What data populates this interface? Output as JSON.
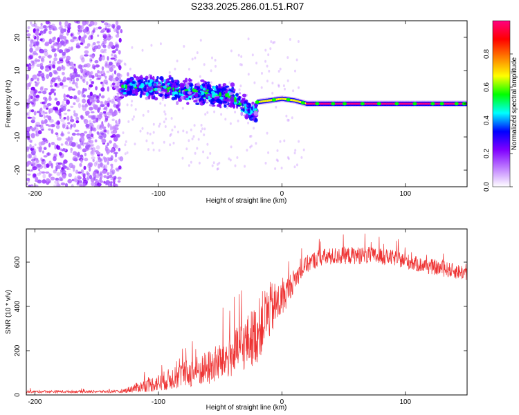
{
  "title": "S233.2025.286.01.51.R07",
  "chart_data": [
    {
      "type": "heatmap",
      "name": "spectrogram",
      "xlabel": "Height of straight line (km)",
      "ylabel": "Frequency (Hz)",
      "xlim": [
        -207,
        150
      ],
      "ylim": [
        -25,
        25
      ],
      "xticks": [
        -200,
        -100,
        0,
        100
      ],
      "yticks": [
        -20,
        -10,
        0,
        10,
        20
      ],
      "colorbar": {
        "label": "Normalized spectral amplitude",
        "range": [
          0.0,
          1.0
        ],
        "ticks": [
          "0.0",
          "0.2",
          "0.4",
          "0.6",
          "0.8"
        ],
        "tick_values": [
          0.0,
          0.2,
          0.4,
          0.6,
          0.8
        ],
        "colors": [
          "#ffffff",
          "#c080ff",
          "#8000ff",
          "#0000ff",
          "#00ffff",
          "#00ff00",
          "#ffff00",
          "#ff8000",
          "#ff0000",
          "#ff0080"
        ]
      },
      "features": [
        {
          "label": "noise",
          "x_range": [
            -207,
            -130
          ],
          "freq_range": [
            -25,
            25
          ],
          "amplitude": 0.1
        },
        {
          "label": "weak signal",
          "x_range": [
            -130,
            -20
          ],
          "freq_center": [
            [
              -130,
              5
            ],
            [
              -100,
              5
            ],
            [
              -60,
              3
            ],
            [
              -40,
              2
            ],
            [
              -30,
              -1
            ],
            [
              -20,
              -3
            ]
          ],
          "freq_spread": 3,
          "amplitude": 0.3
        },
        {
          "label": "strong tone",
          "x_range": [
            -20,
            150
          ],
          "freq_center": [
            [
              -20,
              0.5
            ],
            [
              0,
              1.5
            ],
            [
              10,
              1
            ],
            [
              20,
              0
            ],
            [
              150,
              0
            ]
          ],
          "amplitude": 0.95
        }
      ]
    },
    {
      "type": "line",
      "name": "snr",
      "xlabel": "Height of straight line (km)",
      "ylabel": "SNR (10 * v/v)",
      "xlim": [
        -207,
        150
      ],
      "ylim": [
        0,
        750
      ],
      "xticks": [
        -200,
        -100,
        0,
        100
      ],
      "yticks": [
        0,
        200,
        400,
        600
      ],
      "color": "#ee3333",
      "envelope": {
        "x": [
          -207,
          -130,
          -120,
          -100,
          -80,
          -60,
          -40,
          -30,
          -20,
          -15,
          -10,
          0,
          10,
          20,
          30,
          50,
          70,
          90,
          110,
          130,
          150
        ],
        "mean": [
          15,
          15,
          30,
          55,
          90,
          120,
          180,
          230,
          280,
          340,
          380,
          430,
          520,
          590,
          620,
          630,
          630,
          620,
          590,
          570,
          550
        ],
        "noise": [
          6,
          6,
          20,
          40,
          60,
          80,
          100,
          120,
          140,
          140,
          130,
          80,
          50,
          40,
          40,
          40,
          40,
          35,
          35,
          35,
          35
        ]
      }
    }
  ]
}
